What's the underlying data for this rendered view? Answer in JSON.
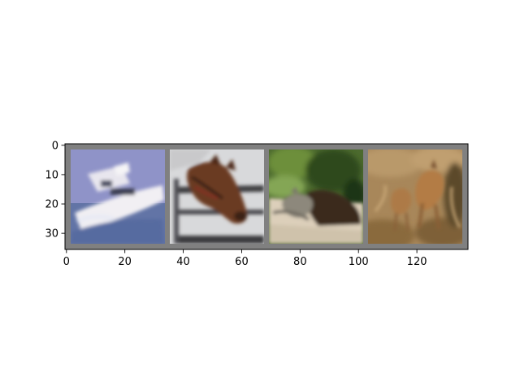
{
  "chart_data": {
    "type": "image",
    "xlim": [
      -0.5,
      137.5
    ],
    "ylim": [
      35.5,
      -0.5
    ],
    "xticks": [
      0,
      20,
      40,
      60,
      80,
      100,
      120
    ],
    "yticks": [
      0,
      10,
      20,
      30
    ],
    "grid": false,
    "frame_color": "#808080",
    "tiles": [
      {
        "name": "boat",
        "x_range": [
          2,
          34
        ],
        "y_range": [
          2,
          34
        ],
        "colors": {
          "top": "#8f93c8",
          "bottom": "#5d6fa0",
          "accent": "#f0eef0",
          "detail": "#3c3f52"
        }
      },
      {
        "name": "horse",
        "x_range": [
          36,
          68
        ],
        "y_range": [
          2,
          34
        ],
        "colors": {
          "top": "#d9dadc",
          "bottom": "#c8c8ca",
          "accent": "#6b3a24",
          "detail": "#3b3b3f"
        }
      },
      {
        "name": "dog",
        "x_range": [
          70,
          102
        ],
        "y_range": [
          2,
          34
        ],
        "colors": {
          "top": "#4a6b2d",
          "bottom": "#d9ccb8",
          "accent": "#3a2a1e",
          "detail": "#8f8a7e"
        }
      },
      {
        "name": "deer",
        "x_range": [
          104,
          136
        ],
        "y_range": [
          2,
          34
        ],
        "colors": {
          "top": "#a9885a",
          "bottom": "#8c6a3c",
          "accent": "#b07a44",
          "detail": "#6b4c2a"
        }
      }
    ]
  }
}
